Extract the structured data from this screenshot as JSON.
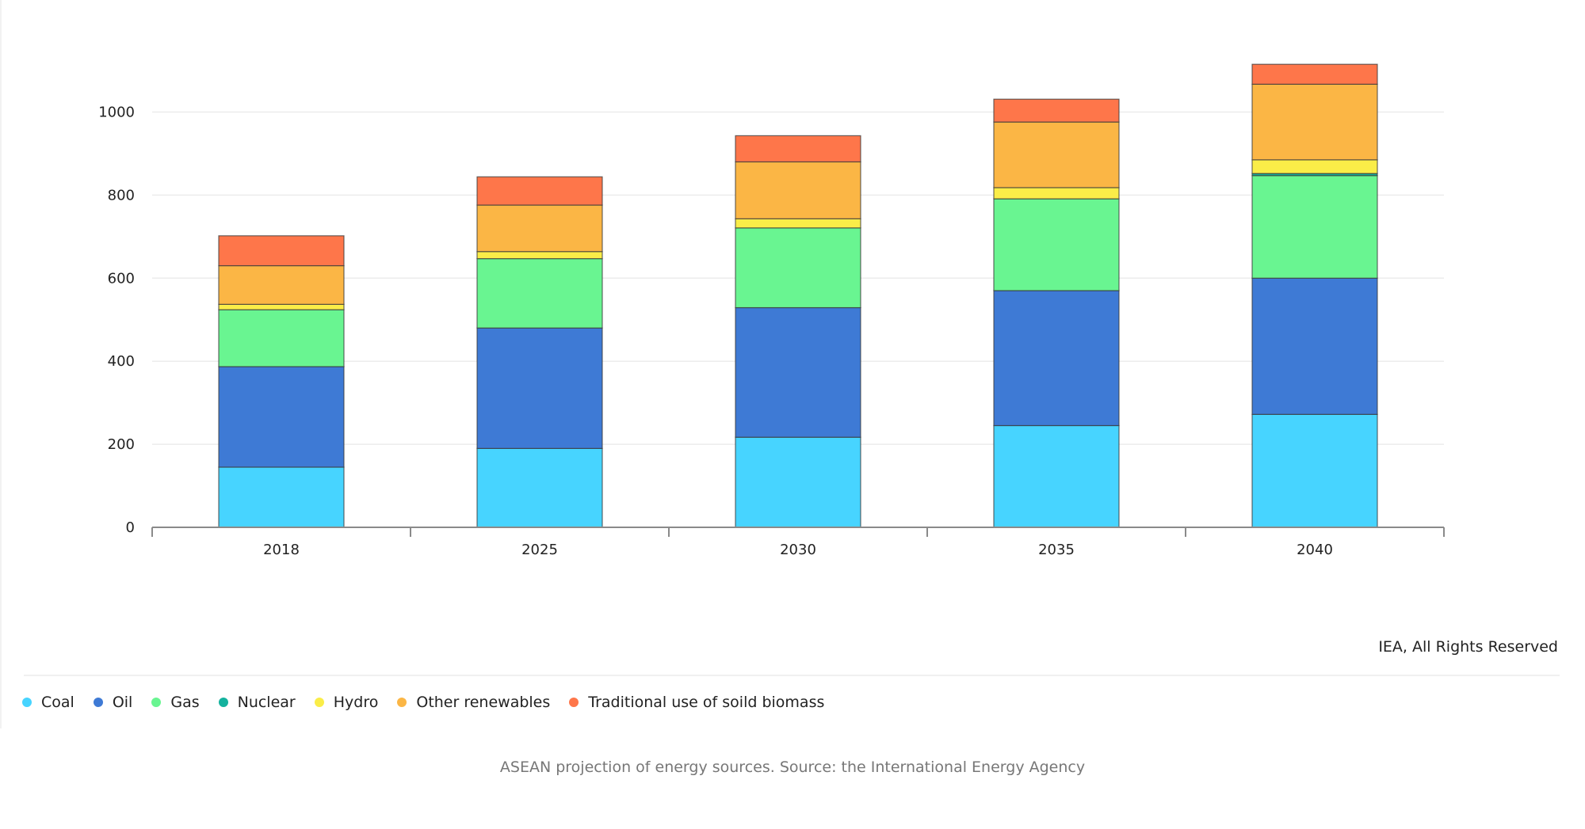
{
  "chart_data": {
    "type": "bar",
    "stacked": true,
    "categories": [
      "2018",
      "2025",
      "2030",
      "2035",
      "2040"
    ],
    "series": [
      {
        "name": "Coal",
        "color": "#47d4ff",
        "values": [
          145,
          190,
          217,
          245,
          272
        ]
      },
      {
        "name": "Oil",
        "color": "#3e7ad5",
        "values": [
          242,
          290,
          312,
          325,
          328
        ]
      },
      {
        "name": "Gas",
        "color": "#69f591",
        "values": [
          137,
          167,
          192,
          221,
          247
        ]
      },
      {
        "name": "Nuclear",
        "color": "#14b29e",
        "values": [
          0,
          0,
          0,
          0,
          5
        ]
      },
      {
        "name": "Hydro",
        "color": "#faed48",
        "values": [
          13,
          17,
          22,
          27,
          33
        ]
      },
      {
        "name": "Other renewables",
        "color": "#fbb645",
        "values": [
          93,
          112,
          137,
          158,
          182
        ]
      },
      {
        "name": "Traditional use of soild biomass",
        "color": "#fe764a",
        "values": [
          72,
          68,
          63,
          55,
          48
        ]
      }
    ],
    "yticks": [
      0,
      200,
      400,
      600,
      800,
      1000
    ],
    "ylim": [
      0,
      1150
    ],
    "grid": true,
    "legend_position": "bottom-left",
    "xlabel": "",
    "ylabel": ""
  },
  "credit": "IEA, All Rights Reserved",
  "caption": "ASEAN projection of energy sources. Source: the International Energy Agency"
}
